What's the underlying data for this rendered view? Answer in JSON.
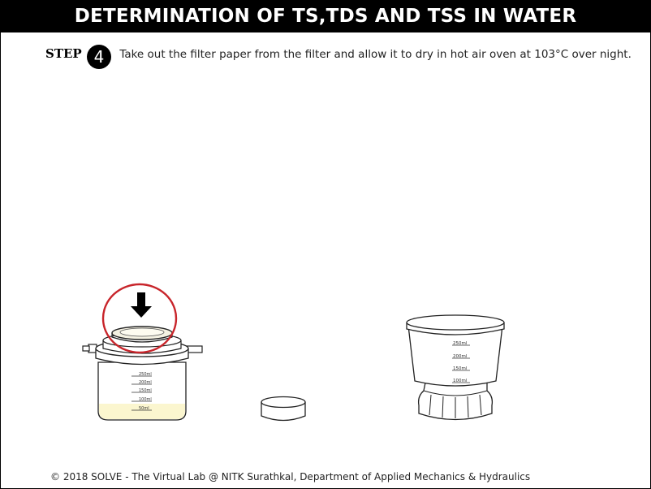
{
  "header": {
    "title": "DETERMINATION OF TS,TDS AND TSS IN WATER"
  },
  "step": {
    "label": "STEP",
    "number": "4",
    "text": "Take out the filter paper from the filter and allow it to dry in hot air oven at 103°C over night."
  },
  "apparatus": {
    "flask_marks": [
      "250ml",
      "200ml",
      "150ml",
      "100ml",
      "50ml"
    ],
    "funnel_marks": [
      "250ml",
      "200ml",
      "150ml",
      "100ml"
    ]
  },
  "colors": {
    "highlight_circle": "#c8252b",
    "liquid": "#fbf6cf"
  },
  "footer": {
    "text": "© 2018 SOLVE - The Virtual Lab @ NITK Surathkal, Department of Applied Mechanics & Hydraulics"
  }
}
